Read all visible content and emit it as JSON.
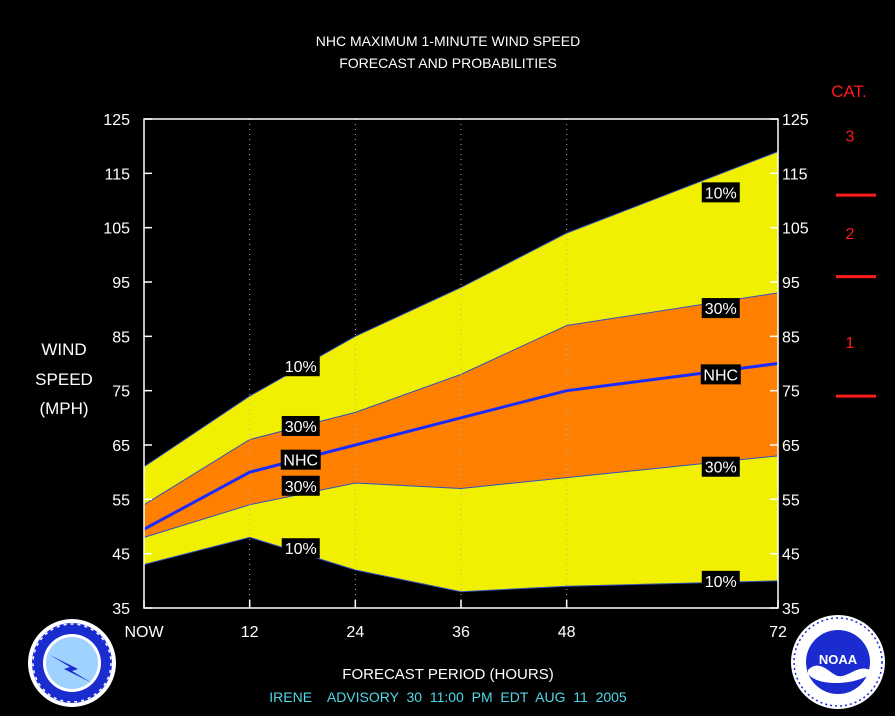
{
  "chart_data": {
    "type": "area",
    "title": "NHC MAXIMUM 1-MINUTE WIND SPEED",
    "subtitle": "FORECAST AND PROBABILITIES",
    "ylabel_lines": [
      "WIND",
      "SPEED",
      "(MPH)"
    ],
    "xlabel": "FORECAST PERIOD (HOURS)",
    "advisory": "IRENE    ADVISORY  30  11:00  PM  EDT  AUG  11  2005",
    "xlim": [
      0,
      72
    ],
    "ylim": [
      35,
      125
    ],
    "x_ticks": [
      {
        "x": 0,
        "label": "NOW"
      },
      {
        "x": 12,
        "label": "12"
      },
      {
        "x": 24,
        "label": "24"
      },
      {
        "x": 36,
        "label": "36"
      },
      {
        "x": 48,
        "label": "48"
      },
      {
        "x": 72,
        "label": "72"
      }
    ],
    "y_ticks": [
      35,
      45,
      55,
      65,
      75,
      85,
      95,
      105,
      115,
      125
    ],
    "gridlines_x": [
      12,
      24,
      36,
      48
    ],
    "x": [
      0,
      12,
      24,
      36,
      48,
      72
    ],
    "series": [
      {
        "name": "10%",
        "values": [
          43,
          48,
          42,
          38,
          39,
          40
        ]
      },
      {
        "name": "30%",
        "values": [
          48,
          54,
          58,
          57,
          59,
          63
        ]
      },
      {
        "name": "NHC",
        "values": [
          49.5,
          60,
          65,
          70,
          75,
          80
        ]
      },
      {
        "name": "30%",
        "values": [
          54,
          66,
          71,
          78,
          87,
          93
        ]
      },
      {
        "name": "10%",
        "values": [
          61,
          74,
          85,
          94,
          104,
          119
        ]
      }
    ],
    "band_labels": [
      {
        "text": "10%",
        "x": 17.8,
        "y": 79.5
      },
      {
        "text": "30%",
        "x": 17.8,
        "y": 68.5
      },
      {
        "text": "NHC",
        "x": 17.8,
        "y": 62.3
      },
      {
        "text": "30%",
        "x": 17.8,
        "y": 57.5
      },
      {
        "text": "10%",
        "x": 17.8,
        "y": 46.0
      },
      {
        "text": "10%",
        "x": 65.5,
        "y": 111.5
      },
      {
        "text": "30%",
        "x": 65.5,
        "y": 90.2
      },
      {
        "text": "NHC",
        "x": 65.5,
        "y": 78.0
      },
      {
        "text": "30%",
        "x": 65.5,
        "y": 61.0
      },
      {
        "text": "10%",
        "x": 65.5,
        "y": 40.0
      }
    ],
    "categories_header": "CAT.",
    "category_labels": [
      {
        "text": "3",
        "y": 122
      },
      {
        "text": "2",
        "y": 104
      },
      {
        "text": "1",
        "y": 84
      }
    ],
    "category_boundaries": [
      74,
      96,
      111
    ],
    "colors": {
      "outer_band": "#f0f000",
      "inner_band": "#ff8000",
      "nhc_line": "#1a2bff",
      "text": "#ffffff",
      "advisory_text": "#4fd8e8",
      "category": "#ff1a1a"
    }
  },
  "logos": {
    "nws_icon": "nws-logo",
    "noaa_icon": "noaa-logo",
    "noaa_text": "NOAA"
  }
}
